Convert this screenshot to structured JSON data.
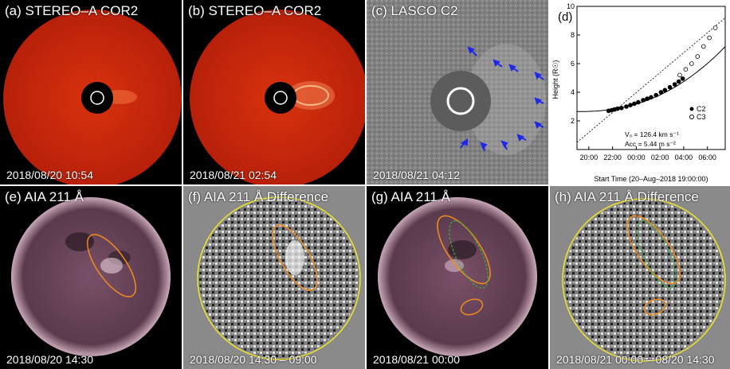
{
  "panels": [
    {
      "label": "(a) STEREO–A COR2",
      "timestamp": "2018/08/20 10:54"
    },
    {
      "label": "(b) STEREO–A COR2",
      "timestamp": "2018/08/21 02:54"
    },
    {
      "label": "(c) LASCO C2",
      "timestamp": "2018/08/21 04:12"
    },
    {
      "label": "(e) AIA 211 Å",
      "timestamp": "2018/08/20 14:30"
    },
    {
      "label": "(f) AIA 211 Å Difference",
      "timestamp": "2018/08/20 14:30 – 09:00"
    },
    {
      "label": "(g) AIA 211 Å",
      "timestamp": "2018/08/21 00:00"
    },
    {
      "label": "(h) AIA 211 Å Difference",
      "timestamp": "2018/08/21 00:00 – 08/20 14:30"
    }
  ],
  "plot": {
    "label": "(d)",
    "ylabel": "Height (R☉)",
    "xlabel": "Start Time (20–Aug–2018 19:00:00)",
    "xticks": [
      "20:00",
      "22:00",
      "00:00",
      "02:00",
      "04:00",
      "06:00"
    ],
    "yticks": [
      "2",
      "4",
      "6",
      "8",
      "10"
    ],
    "legend": [
      "C2",
      "C3"
    ],
    "v0_text": "V₀ =  126.4 km s⁻¹",
    "acc_text": "Acc =   5.44 m s⁻²"
  },
  "colors": {
    "cor2": "#c8230a",
    "aia": "#6a4358",
    "diff_gray": "#7c7c7c",
    "ellipse_orange": "#f08c1e",
    "ellipse_green": "#32b43c",
    "limb_yellow": "#f0e628",
    "arrow_blue": "#1e28e6"
  },
  "chart_data": {
    "type": "scatter",
    "xlabel": "Start Time (20–Aug–2018 19:00:00)",
    "ylabel": "Height (R☉)",
    "ylim": [
      0,
      10
    ],
    "series": [
      {
        "name": "C2",
        "marker": "filled-circle",
        "x": [
          "21:40",
          "21:55",
          "22:10",
          "22:25",
          "22:45",
          "23:10",
          "23:30",
          "23:50",
          "00:10",
          "00:35",
          "00:55",
          "01:15",
          "01:40",
          "02:05",
          "02:25",
          "02:50",
          "03:15",
          "03:35",
          "03:55"
        ],
        "y": [
          2.7,
          2.75,
          2.8,
          2.85,
          2.9,
          3.0,
          3.1,
          3.2,
          3.3,
          3.45,
          3.55,
          3.65,
          3.8,
          4.0,
          4.15,
          4.35,
          4.55,
          4.75,
          4.95
        ]
      },
      {
        "name": "C3",
        "marker": "open-circle",
        "x": [
          "03:40",
          "04:10",
          "04:40",
          "05:10",
          "05:40",
          "06:10",
          "06:40"
        ],
        "y": [
          5.2,
          5.6,
          6.0,
          6.5,
          7.2,
          7.8,
          8.5
        ]
      }
    ],
    "v0_km_s": 126.4,
    "acc_m_s2": 5.44
  }
}
